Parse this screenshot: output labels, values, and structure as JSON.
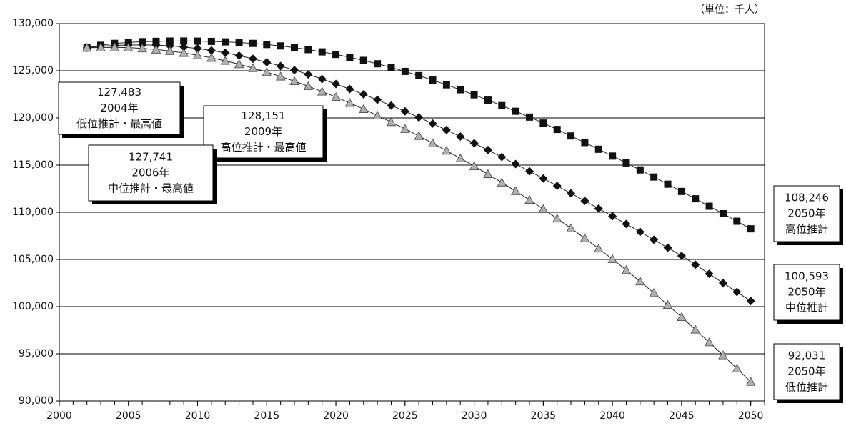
{
  "chart_data": {
    "type": "line",
    "unit_label": "（単位：千人）",
    "x": [
      2002,
      2003,
      2004,
      2005,
      2006,
      2007,
      2008,
      2009,
      2010,
      2011,
      2012,
      2013,
      2014,
      2015,
      2016,
      2017,
      2018,
      2019,
      2020,
      2021,
      2022,
      2023,
      2024,
      2025,
      2026,
      2027,
      2028,
      2029,
      2030,
      2031,
      2032,
      2033,
      2034,
      2035,
      2036,
      2037,
      2038,
      2039,
      2040,
      2041,
      2042,
      2043,
      2044,
      2045,
      2046,
      2047,
      2048,
      2049,
      2050
    ],
    "xlim": [
      2000,
      2051
    ],
    "xticks": [
      2000,
      2005,
      2010,
      2015,
      2020,
      2025,
      2030,
      2035,
      2040,
      2045,
      2050
    ],
    "ylim": [
      90000,
      130000
    ],
    "yticks": [
      {
        "value": 90000,
        "label": "90,000"
      },
      {
        "value": 95000,
        "label": "95,000"
      },
      {
        "value": 100000,
        "label": "100,000"
      },
      {
        "value": 105000,
        "label": "105,000"
      },
      {
        "value": 110000,
        "label": "110,000"
      },
      {
        "value": 115000,
        "label": "115,000"
      },
      {
        "value": 120000,
        "label": "120,000"
      },
      {
        "value": 125000,
        "label": "125,000"
      },
      {
        "value": 130000,
        "label": "130,000"
      }
    ],
    "grid": true,
    "series": [
      {
        "marker": "square",
        "color": "#111111",
        "values": [
          127435,
          127700,
          127900,
          128000,
          128080,
          128120,
          128145,
          128151,
          128140,
          128110,
          128060,
          127990,
          127900,
          127780,
          127630,
          127450,
          127240,
          127000,
          126730,
          126430,
          126100,
          125740,
          125350,
          124930,
          124480,
          124010,
          123510,
          122990,
          122450,
          121890,
          121310,
          120710,
          120090,
          119460,
          118780,
          118090,
          117390,
          116680,
          115960,
          115230,
          114490,
          113740,
          112980,
          112210,
          111430,
          110640,
          109850,
          109050,
          108246
        ]
      },
      {
        "marker": "diamond",
        "color": "#111111",
        "values": [
          127435,
          127600,
          127690,
          127730,
          127741,
          127720,
          127640,
          127520,
          127360,
          127150,
          126900,
          126600,
          126270,
          125900,
          125500,
          125070,
          124610,
          124120,
          123600,
          123060,
          122500,
          121920,
          121320,
          120700,
          120060,
          119400,
          118720,
          118030,
          117320,
          116600,
          115860,
          115110,
          114350,
          113580,
          112800,
          112010,
          111210,
          110400,
          109580,
          108760,
          107930,
          107090,
          106240,
          105380,
          104450,
          103480,
          102500,
          101550,
          100593
        ]
      },
      {
        "marker": "triangle",
        "color": "#b0b0b0",
        "values": [
          127435,
          127470,
          127483,
          127450,
          127370,
          127250,
          127090,
          126890,
          126650,
          126370,
          126050,
          125690,
          125290,
          124860,
          124390,
          123890,
          123360,
          122800,
          122210,
          121590,
          120940,
          120260,
          119560,
          118840,
          118090,
          117320,
          116530,
          115720,
          114890,
          114040,
          113160,
          112250,
          111310,
          110340,
          109340,
          108310,
          107250,
          106160,
          105040,
          103870,
          102670,
          101440,
          100180,
          98890,
          97570,
          96220,
          94840,
          93440,
          92031
        ]
      }
    ],
    "annotations": [
      {
        "lines": [
          "127,483",
          "2004年",
          "低位推計・最高値"
        ]
      },
      {
        "lines": [
          "128,151",
          "2009年",
          "高位推計・最高値"
        ]
      },
      {
        "lines": [
          "127,741",
          "2006年",
          "中位推計・最高値"
        ]
      },
      {
        "lines": [
          "108,246",
          "2050年",
          "高位推計"
        ]
      },
      {
        "lines": [
          "100,593",
          "2050年",
          "中位推計"
        ]
      },
      {
        "lines": [
          "92,031",
          "2050年",
          "低位推計"
        ]
      }
    ]
  }
}
